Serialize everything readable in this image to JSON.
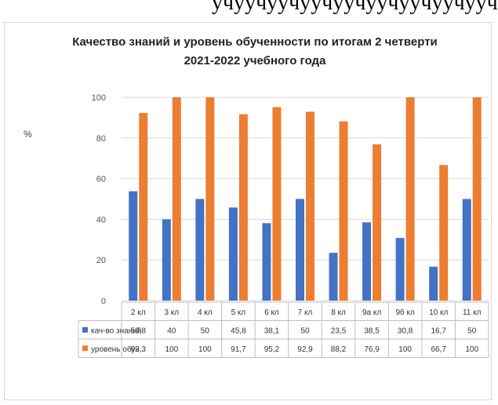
{
  "top_text": "учуучуучуучуучуучуучуучуучу",
  "chart_data": {
    "type": "bar",
    "title": "Качество знаний и уровень обученности по итогам 2 четверти 2021-2022 учебного года",
    "title_lines": [
      "Качество знаний и уровень обученности по итогам 2 четверти",
      "2021-2022 учебного года"
    ],
    "ylabel": "%",
    "xlabel": "",
    "ylim": [
      0,
      100
    ],
    "yticks": [
      0,
      20,
      40,
      60,
      80,
      100
    ],
    "grid": true,
    "legend": "data-table-below",
    "categories": [
      "2 кл",
      "3 кл",
      "4 кл",
      "5 кл",
      "6 кл",
      "7 кл",
      "8 кл",
      "9а кл",
      "9б кл",
      "10 кл",
      "11 кл"
    ],
    "series": [
      {
        "name": "кач-во знаний",
        "color": "#4472c4",
        "values": [
          53.8,
          40,
          50,
          45.8,
          38.1,
          50,
          23.5,
          38.5,
          30.8,
          16.7,
          50
        ],
        "labels": [
          "53,8",
          "40",
          "50",
          "45,8",
          "38,1",
          "50",
          "23,5",
          "38,5",
          "30,8",
          "16,7",
          "50"
        ]
      },
      {
        "name": "уровень обуч.",
        "color": "#ed7d31",
        "values": [
          92.3,
          100,
          100,
          91.7,
          95.2,
          92.9,
          88.2,
          76.9,
          100,
          66.7,
          100
        ],
        "labels": [
          "92,3",
          "100",
          "100",
          "91,7",
          "95,2",
          "92,9",
          "88,2",
          "76,9",
          "100",
          "66,7",
          "100"
        ]
      }
    ]
  }
}
